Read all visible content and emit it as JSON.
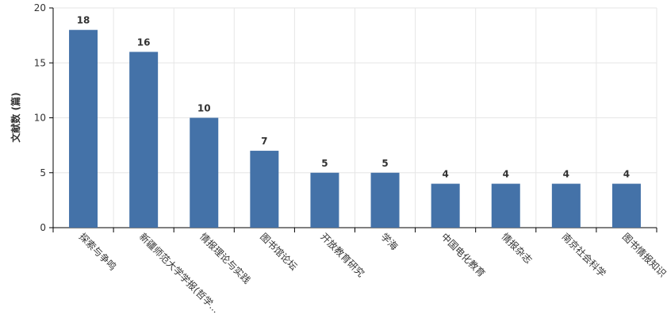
{
  "chart_data": {
    "type": "bar",
    "ylabel": "文献数 (篇)",
    "categories": [
      "探索与争鸣",
      "新疆师范大学学报(哲学...",
      "情报理论与实践",
      "图书馆论坛",
      "开放教育研究",
      "学海",
      "中国电化教育",
      "情报杂志",
      "南京社会科学",
      "图书情报知识"
    ],
    "values": [
      18,
      16,
      10,
      7,
      5,
      5,
      4,
      4,
      4,
      4
    ],
    "color": "#4472a8",
    "ylim": [
      0,
      20
    ],
    "yticks": [
      0,
      5,
      10,
      15,
      20
    ],
    "grid": true
  }
}
